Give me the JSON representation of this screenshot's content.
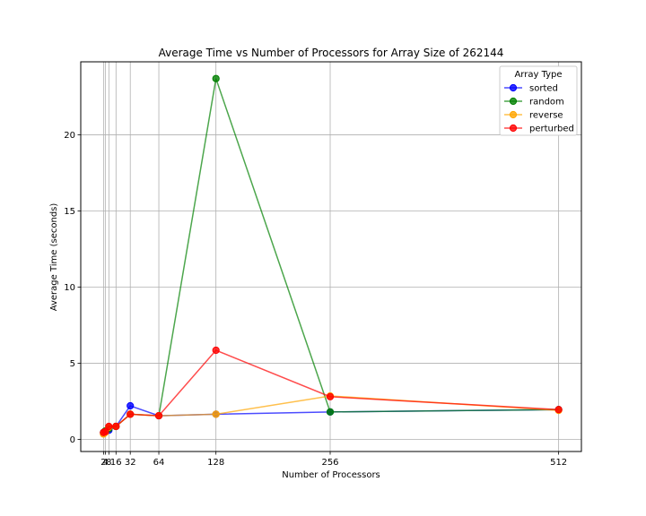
{
  "chart_data": {
    "type": "line",
    "title": "Average Time vs Number of Processors for Array Size of 262144",
    "xlabel": "Number of Processors",
    "ylabel": "Average Time (seconds)",
    "x": [
      2,
      4,
      8,
      16,
      32,
      64,
      128,
      256,
      512
    ],
    "x_tick_labels": [
      "2",
      "4",
      "8",
      "16",
      "32",
      "64",
      "128",
      "256",
      "512"
    ],
    "xlim": [
      -23.5,
      537.5
    ],
    "ylim": [
      -0.8,
      24.8
    ],
    "y_ticks": [
      0,
      5,
      10,
      15,
      20
    ],
    "grid": true,
    "legend_title": "Array Type",
    "legend_position": "top-right",
    "series": [
      {
        "name": "sorted",
        "color": "#0000ff",
        "values": [
          0.45,
          0.5,
          0.6,
          0.85,
          2.2,
          1.55,
          1.65,
          1.8,
          1.95
        ]
      },
      {
        "name": "random",
        "color": "#008000",
        "values": [
          0.45,
          0.55,
          0.7,
          0.85,
          1.65,
          1.55,
          23.7,
          1.8,
          1.95
        ]
      },
      {
        "name": "reverse",
        "color": "#ffa500",
        "values": [
          0.35,
          0.45,
          0.8,
          0.85,
          1.65,
          1.55,
          1.65,
          2.85,
          1.9
        ]
      },
      {
        "name": "perturbed",
        "color": "#ff0000",
        "values": [
          0.45,
          0.5,
          0.85,
          0.85,
          1.65,
          1.55,
          5.85,
          2.8,
          1.95
        ]
      }
    ]
  }
}
